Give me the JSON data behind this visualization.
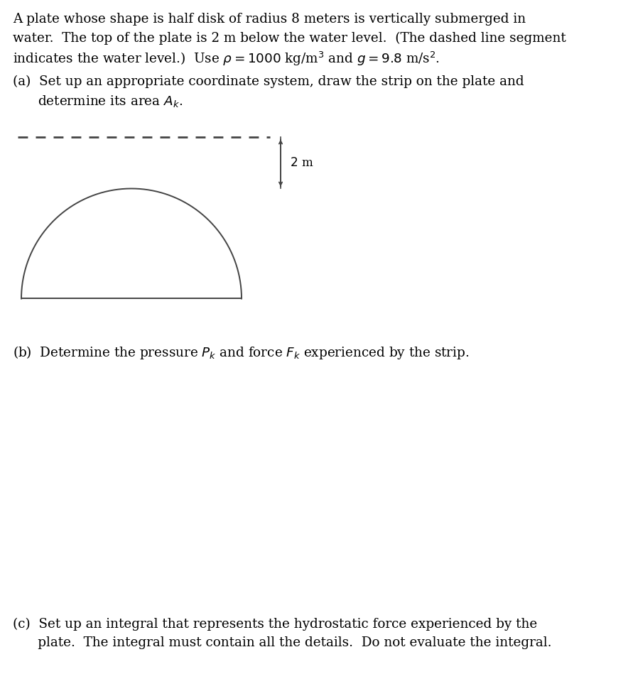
{
  "intro_line1": "A plate whose shape is half disk of radius 8 meters is vertically submerged in",
  "intro_line2": "water.  The top of the plate is 2 m below the water level.  (The dashed line segment",
  "intro_line3": "indicates the water level.)  Use $\\rho = 1000$ kg/m$^3$ and $g = 9.8$ m/s$^2$.",
  "part_a_line1": "(a)  Set up an appropriate coordinate system, draw the strip on the plate and",
  "part_a_line2": "      determine its area $A_k$.",
  "part_b_line1": "(b)  Determine the pressure $P_k$ and force $F_k$ experienced by the strip.",
  "part_c_line1": "(c)  Set up an integral that represents the hydrostatic force experienced by the",
  "part_c_line2": "      plate.  The integral must contain all the details.  Do not evaluate the integral.",
  "line_color": "#444444",
  "text_color": "#000000",
  "background_color": "#ffffff",
  "fontsize_body": 13.2,
  "fontfamily": "DejaVu Serif",
  "fig_width": 8.91,
  "fig_height": 9.49,
  "dpi": 100
}
